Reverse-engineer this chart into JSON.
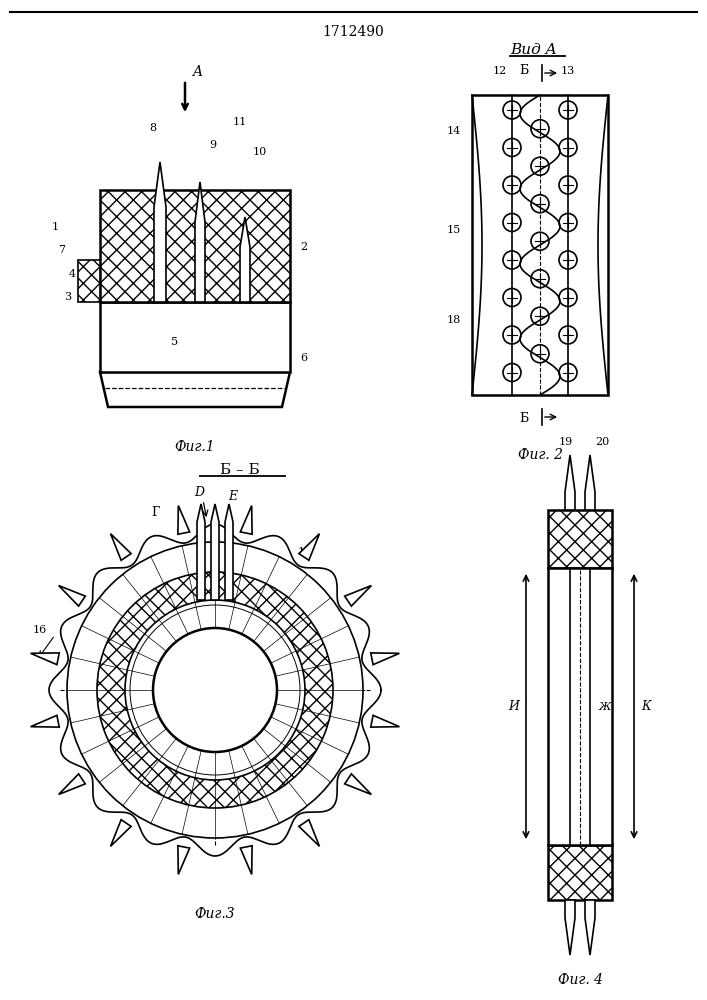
{
  "title": "1712490",
  "bg_color": "#ffffff",
  "line_color": "#000000",
  "fig1_label": "Фиг.1",
  "fig2_label": "Фиг. 2",
  "fig3_label": "Фиг.3",
  "fig4_label": "Фиг. 4",
  "vid_a_label": "Вид A",
  "bb_label": "Б – Б",
  "lw": 1.2,
  "lw2": 1.8
}
